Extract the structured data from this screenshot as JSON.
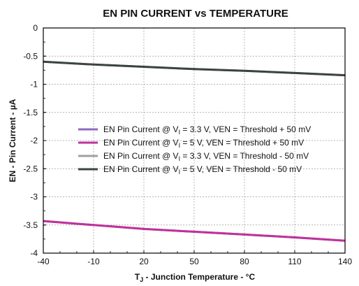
{
  "chart_data": {
    "type": "line",
    "title": "EN PIN CURRENT vs TEMPERATURE",
    "xlabel": "T_J - Junction Temperature - °C",
    "ylabel": "EN - Pin Current - µA",
    "xlim": [
      -40,
      140
    ],
    "ylim": [
      -4,
      0
    ],
    "xticks": [
      "-40",
      "-10",
      "20",
      "50",
      "80",
      "110",
      "140"
    ],
    "yticks": [
      "0",
      "-0.5",
      "-1",
      "-1.5",
      "-2",
      "-2.5",
      "-3",
      "-3.5",
      "-4"
    ],
    "grid": true,
    "legend_position": "center",
    "series": [
      {
        "name": "EN Pin Current @ V_I = 3.3 V, VEN = Threshold + 50 mV",
        "color": "#8e6bc1",
        "x": [
          -40,
          -10,
          20,
          50,
          80,
          110,
          140
        ],
        "y": [
          -3.43,
          -3.5,
          -3.57,
          -3.62,
          -3.67,
          -3.72,
          -3.78
        ]
      },
      {
        "name": "EN Pin Current @ V_I = 5 V, VEN = Threshold + 50 mV",
        "color": "#c0329a",
        "x": [
          -40,
          -10,
          20,
          50,
          80,
          110,
          140
        ],
        "y": [
          -3.43,
          -3.5,
          -3.57,
          -3.62,
          -3.67,
          -3.72,
          -3.78
        ]
      },
      {
        "name": "EN Pin Current @ V_I = 3.3 V, VEN = Threshold - 50 mV",
        "color": "#a0a0a0",
        "x": [
          -40,
          -10,
          20,
          50,
          80,
          110,
          140
        ],
        "y": [
          -0.6,
          -0.65,
          -0.69,
          -0.73,
          -0.76,
          -0.8,
          -0.84
        ]
      },
      {
        "name": "EN Pin Current @ V_I = 5 V, VEN = Threshold - 50 mV",
        "color": "#3b4442",
        "x": [
          -40,
          -10,
          20,
          50,
          80,
          110,
          140
        ],
        "y": [
          -0.6,
          -0.65,
          -0.69,
          -0.73,
          -0.76,
          -0.8,
          -0.84
        ]
      }
    ]
  }
}
